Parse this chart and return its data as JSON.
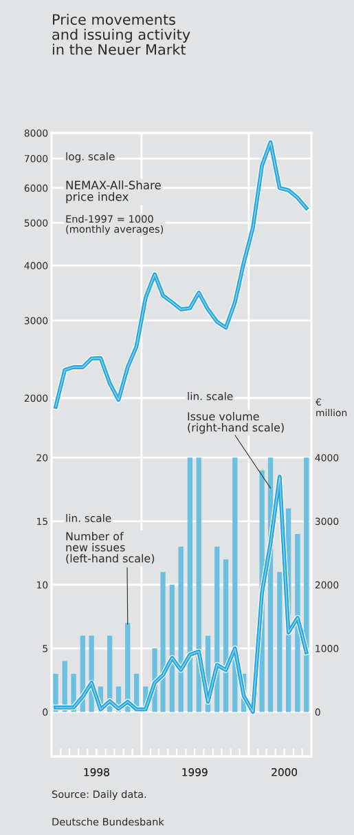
{
  "chart_data": [
    {
      "type": "line",
      "title": "Price movements\nand issuing activity\nin the Neuer Markt",
      "log": "y",
      "tick_labels": "y",
      "grid": "y",
      "legend": false,
      "x": [
        "1998-03-15",
        "1998-04-15",
        "1998-05-15",
        "1998-06-15",
        "1998-07-15",
        "1998-08-15",
        "1998-09-15",
        "1998-10-15",
        "1998-11-15",
        "1998-12-15",
        "1999-01-15",
        "1999-02-15",
        "1999-03-15",
        "1999-04-15",
        "1999-05-15",
        "1999-06-15",
        "1999-07-15",
        "1999-08-15",
        "1999-09-15",
        "1999-10-15",
        "1999-11-15",
        "1999-12-15",
        "2000-01-15",
        "2000-02-15",
        "2000-03-15",
        "2000-04-15",
        "2000-05-15",
        "2000-06-15",
        "2000-07-15"
      ],
      "series": [
        {
          "color": "#29a8e0",
          "values": [
            1910,
            2316,
            2350,
            2350,
            2460,
            2465,
            2160,
            1980,
            2350,
            2620,
            3380,
            3820,
            3420,
            3300,
            3180,
            3200,
            3470,
            3180,
            2980,
            2890,
            3300,
            4060,
            4870,
            6750,
            7620,
            6000,
            5930,
            5700,
            5400
          ]
        }
      ],
      "xlim": [
        "1998-03-01",
        "2000-08-01"
      ],
      "ylim": [
        1800,
        8000
      ],
      "yticks": [
        2000,
        3000,
        4000,
        5000,
        6000,
        7000,
        8000
      ],
      "ref_lines": [
        {
          "axis": "x",
          "value": "1999-01-01",
          "color": "#ffffff"
        },
        {
          "axis": "x",
          "value": "2000-01-01",
          "color": "#ffffff"
        }
      ],
      "annotations": [
        "log. scale",
        "NEMAX-All-Share\nprice index",
        "End-1997 = 1000\n(monthly averages)"
      ]
    },
    {
      "type": "bar",
      "y2label": "€\nmillion",
      "grid": "y",
      "legend": false,
      "x": [
        "1998-03-15",
        "1998-04-15",
        "1998-05-15",
        "1998-06-15",
        "1998-07-15",
        "1998-08-15",
        "1998-09-15",
        "1998-10-15",
        "1998-11-15",
        "1998-12-15",
        "1999-01-15",
        "1999-02-15",
        "1999-03-15",
        "1999-04-15",
        "1999-05-15",
        "1999-06-15",
        "1999-07-15",
        "1999-08-15",
        "1999-09-15",
        "1999-10-15",
        "1999-11-15",
        "1999-12-15",
        "2000-01-15",
        "2000-02-15",
        "2000-03-15",
        "2000-04-15",
        "2000-05-15",
        "2000-06-15",
        "2000-07-15"
      ],
      "series": [
        {
          "type": "bar",
          "color": "#6bbfe0",
          "values": [
            3,
            4,
            3,
            6,
            6,
            2,
            6,
            2,
            7,
            3,
            2,
            5,
            11,
            10,
            13,
            20,
            20,
            6,
            13,
            12,
            20,
            3,
            0,
            19,
            20,
            11,
            16,
            14,
            20
          ]
        },
        {
          "type": "line",
          "axis": "y2",
          "color": "#29a8e0",
          "values": [
            70,
            70,
            70,
            240,
            460,
            40,
            170,
            50,
            160,
            40,
            40,
            460,
            580,
            850,
            660,
            900,
            950,
            160,
            740,
            660,
            1000,
            250,
            0,
            1880,
            2650,
            3700,
            1250,
            1480,
            940
          ]
        }
      ],
      "xlim": [
        "1998-03-01",
        "2000-08-01"
      ],
      "ylim": [
        -3.5,
        23.1
      ],
      "yticks": [
        0,
        5,
        10,
        15,
        20
      ],
      "y2lim": [
        -700,
        4620
      ],
      "y2ticks": [
        0,
        1000,
        2000,
        3000,
        4000
      ],
      "xticks": [
        {
          "value": "1998-04-01",
          "label": null
        },
        {
          "value": "1998-05-01",
          "label": null
        },
        {
          "value": "1998-06-01",
          "label": null
        },
        {
          "value": "1998-07-01",
          "label": null
        },
        {
          "value": "1998-08-01",
          "label": null
        },
        {
          "value": "1998-09-01",
          "label": null
        },
        {
          "value": "1998-10-01",
          "label": null
        },
        {
          "value": "1998-11-01",
          "label": null
        },
        {
          "value": "1998-12-01",
          "label": null
        },
        {
          "value": "1999-01-01",
          "label": null
        },
        {
          "value": "1999-02-01",
          "label": null
        },
        {
          "value": "1999-03-01",
          "label": null
        },
        {
          "value": "1999-04-01",
          "label": null
        },
        {
          "value": "1999-05-01",
          "label": null
        },
        {
          "value": "1999-06-01",
          "label": null
        },
        {
          "value": "1999-07-01",
          "label": null
        },
        {
          "value": "1999-08-01",
          "label": null
        },
        {
          "value": "1999-09-01",
          "label": null
        },
        {
          "value": "1999-10-01",
          "label": null
        },
        {
          "value": "1999-11-01",
          "label": null
        },
        {
          "value": "1999-12-01",
          "label": null
        },
        {
          "value": "2000-01-01",
          "label": null
        },
        {
          "value": "2000-02-01",
          "label": null
        },
        {
          "value": "2000-03-01",
          "label": null
        },
        {
          "value": "2000-04-01",
          "label": null
        },
        {
          "value": "2000-05-01",
          "label": null
        },
        {
          "value": "2000-06-01",
          "label": null
        },
        {
          "value": "2000-07-01",
          "label": null
        },
        {
          "value": "1998-08-01",
          "label": "1998"
        },
        {
          "value": "1999-07-01",
          "label": "1999"
        },
        {
          "value": "2000-05-01",
          "label": "2000"
        }
      ],
      "ref_lines": [
        {
          "axis": "x",
          "value": "1999-01-01",
          "color": "#ffffff"
        },
        {
          "axis": "x",
          "value": "2000-01-01",
          "color": "#ffffff"
        }
      ],
      "annotations": [
        "lin. scale",
        {
          "text": "Number of\nnew issues\n(left-hand scale)",
          "x": "1998-11-15",
          "y": 6.9
        },
        "lin. scale",
        {
          "text": "Issue volume\n(right-hand scale)",
          "x": "2000-03-15",
          "y": 17.6
        },
        "Source: Daily data.",
        "Deutsche Bundesbank"
      ]
    }
  ]
}
